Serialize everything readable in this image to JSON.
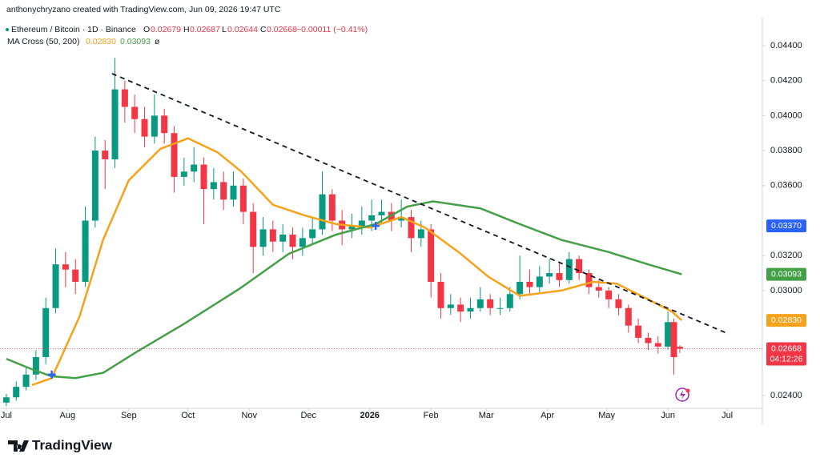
{
  "header": {
    "credit": "anthonychryzano created with TradingView.com, Jun 09, 2026 19:47 UTC",
    "symbol": "Ethereum / Bitcoin · 1D · Binance",
    "o_label": "O",
    "open": {
      "value": 0.02679,
      "label": "0.02679"
    },
    "h_label": "H",
    "high": {
      "value": 0.02687,
      "label": "0.02687"
    },
    "l_label": "L",
    "low": {
      "value": 0.02644,
      "label": "0.02644"
    },
    "c_label": "C",
    "close": {
      "value": 0.02668,
      "label": "0.02668"
    },
    "change": {
      "value": -0.00011,
      "label": "−0.00011 (−0.41%)"
    },
    "indicator": "MA Cross (50, 200)",
    "ma_fast": {
      "value": 0.0283,
      "label": "0.02830"
    },
    "ma_slow": {
      "value": 0.03093,
      "label": "0.03093"
    },
    "hidden_icon": "ø"
  },
  "chart_data": {
    "type": "candlestick",
    "xlim": [
      -3.2,
      382.8
    ],
    "ylim": [
      0.02327,
      0.0456
    ],
    "xticks": [
      {
        "value": 0,
        "label": "Jul"
      },
      {
        "value": 31,
        "label": "Aug"
      },
      {
        "value": 62,
        "label": "Sep"
      },
      {
        "value": 92,
        "label": "Oct"
      },
      {
        "value": 123,
        "label": "Nov"
      },
      {
        "value": 153,
        "label": "Dec"
      },
      {
        "value": 184,
        "label": "2026"
      },
      {
        "value": 215,
        "label": "Feb"
      },
      {
        "value": 243,
        "label": "Mar"
      },
      {
        "value": 274,
        "label": "Apr"
      },
      {
        "value": 304,
        "label": "May"
      },
      {
        "value": 335,
        "label": "Jun"
      },
      {
        "value": 365,
        "label": "Jul"
      }
    ],
    "yticks": [
      {
        "value": 0.044,
        "label": "0.04400"
      },
      {
        "value": 0.042,
        "label": "0.04200"
      },
      {
        "value": 0.04,
        "label": "0.04000"
      },
      {
        "value": 0.038,
        "label": "0.03800"
      },
      {
        "value": 0.036,
        "label": "0.03600"
      },
      {
        "value": 0.032,
        "label": "0.03200"
      },
      {
        "value": 0.03,
        "label": "0.03000"
      },
      {
        "value": 0.024,
        "label": "0.02400"
      }
    ],
    "up_color": "#089981",
    "down_color": "#f23645",
    "candles": {
      "x": [
        0,
        5,
        10,
        15,
        20,
        25,
        30,
        35,
        40,
        45,
        50,
        55,
        60,
        65,
        70,
        75,
        80,
        85,
        90,
        95,
        100,
        105,
        110,
        115,
        120,
        125,
        130,
        135,
        140,
        145,
        150,
        155,
        160,
        165,
        170,
        175,
        180,
        185,
        190,
        195,
        200,
        205,
        210,
        215,
        220,
        225,
        230,
        235,
        240,
        245,
        250,
        255,
        260,
        265,
        270,
        275,
        280,
        285,
        290,
        295,
        300,
        305,
        310,
        315,
        320,
        325,
        330,
        335,
        338,
        341
      ],
      "open": [
        0.0236,
        0.0239,
        0.0245,
        0.0252,
        0.0262,
        0.029,
        0.0315,
        0.0312,
        0.0305,
        0.034,
        0.038,
        0.0375,
        0.0415,
        0.0405,
        0.0398,
        0.0388,
        0.04,
        0.039,
        0.0365,
        0.0368,
        0.0372,
        0.0358,
        0.0362,
        0.0352,
        0.036,
        0.0345,
        0.0325,
        0.0335,
        0.0328,
        0.0332,
        0.0325,
        0.033,
        0.0335,
        0.0355,
        0.034,
        0.0335,
        0.0337,
        0.034,
        0.0343,
        0.0345,
        0.034,
        0.0342,
        0.033,
        0.0335,
        0.0305,
        0.029,
        0.0292,
        0.0288,
        0.029,
        0.0295,
        0.029,
        0.029,
        0.0298,
        0.0305,
        0.0302,
        0.0308,
        0.031,
        0.0306,
        0.0318,
        0.031,
        0.0302,
        0.03,
        0.0295,
        0.029,
        0.028,
        0.0273,
        0.027,
        0.0268,
        0.0282,
        0.02679
      ],
      "high": [
        0.0241,
        0.0248,
        0.0256,
        0.0266,
        0.0296,
        0.0324,
        0.0322,
        0.0318,
        0.0348,
        0.0388,
        0.0386,
        0.0433,
        0.042,
        0.0412,
        0.0405,
        0.0412,
        0.0404,
        0.0394,
        0.0376,
        0.0382,
        0.0376,
        0.037,
        0.0368,
        0.0368,
        0.0364,
        0.035,
        0.0342,
        0.034,
        0.0338,
        0.0336,
        0.0336,
        0.0342,
        0.0368,
        0.0358,
        0.0346,
        0.0344,
        0.0348,
        0.0352,
        0.0352,
        0.035,
        0.0352,
        0.0346,
        0.034,
        0.0338,
        0.031,
        0.0298,
        0.0296,
        0.0296,
        0.0302,
        0.0298,
        0.0296,
        0.0302,
        0.032,
        0.0312,
        0.0314,
        0.0318,
        0.0316,
        0.0322,
        0.032,
        0.0312,
        0.0306,
        0.0302,
        0.0298,
        0.0292,
        0.0284,
        0.0276,
        0.0274,
        0.0288,
        0.0284,
        0.02687
      ],
      "low": [
        0.0234,
        0.0237,
        0.0243,
        0.0249,
        0.0258,
        0.0287,
        0.0302,
        0.0298,
        0.0302,
        0.0336,
        0.0358,
        0.037,
        0.0396,
        0.039,
        0.0382,
        0.0384,
        0.0384,
        0.0356,
        0.036,
        0.0362,
        0.0338,
        0.0352,
        0.0346,
        0.0348,
        0.0338,
        0.031,
        0.032,
        0.0322,
        0.0322,
        0.0318,
        0.032,
        0.0326,
        0.0332,
        0.0334,
        0.0326,
        0.033,
        0.0332,
        0.0334,
        0.0338,
        0.0334,
        0.0336,
        0.0322,
        0.0325,
        0.0296,
        0.0284,
        0.0286,
        0.0282,
        0.0284,
        0.0288,
        0.0286,
        0.0286,
        0.0288,
        0.0295,
        0.0298,
        0.0298,
        0.0304,
        0.0302,
        0.0304,
        0.0306,
        0.0298,
        0.0296,
        0.029,
        0.0286,
        0.0276,
        0.027,
        0.0266,
        0.0264,
        0.0266,
        0.0252,
        0.02644
      ],
      "close": [
        0.0239,
        0.0245,
        0.0252,
        0.0262,
        0.029,
        0.0315,
        0.0312,
        0.0305,
        0.034,
        0.038,
        0.0375,
        0.0415,
        0.0405,
        0.0398,
        0.0388,
        0.04,
        0.039,
        0.0365,
        0.0368,
        0.0372,
        0.0358,
        0.0362,
        0.0352,
        0.036,
        0.0345,
        0.0325,
        0.0335,
        0.0328,
        0.0332,
        0.0325,
        0.033,
        0.0335,
        0.0355,
        0.034,
        0.0335,
        0.0337,
        0.034,
        0.0343,
        0.0345,
        0.034,
        0.0342,
        0.033,
        0.0335,
        0.0305,
        0.029,
        0.0292,
        0.0288,
        0.029,
        0.0295,
        0.029,
        0.029,
        0.0298,
        0.0305,
        0.0302,
        0.0308,
        0.031,
        0.0306,
        0.0318,
        0.031,
        0.0302,
        0.03,
        0.0295,
        0.029,
        0.028,
        0.0273,
        0.027,
        0.0268,
        0.0282,
        0.0262,
        0.02668
      ]
    },
    "series": [
      {
        "color": "#f7a21b",
        "x": [
          13,
          23,
          37,
          49,
          62,
          78,
          92,
          107,
          119,
          135,
          151,
          167,
          184,
          200,
          212,
          229,
          244,
          260,
          281,
          297,
          309,
          325,
          337,
          342
        ],
        "values": [
          0.0246,
          0.025,
          0.0285,
          0.0329,
          0.0363,
          0.0381,
          0.0387,
          0.0379,
          0.0368,
          0.0349,
          0.0343,
          0.0338,
          0.0336,
          0.0342,
          0.0336,
          0.0322,
          0.0308,
          0.0297,
          0.03,
          0.0305,
          0.0304,
          0.0295,
          0.0288,
          0.0283
        ],
        "value_label": {
          "value": 0.0283,
          "label": "0.02830"
        }
      },
      {
        "color": "#43a047",
        "x": [
          0,
          13,
          23,
          35,
          49,
          66,
          90,
          118,
          143,
          167,
          187,
          203,
          216,
          240,
          260,
          281,
          305,
          325,
          342
        ],
        "values": [
          0.0261,
          0.0255,
          0.0251,
          0.025,
          0.0253,
          0.0265,
          0.0281,
          0.0301,
          0.0321,
          0.0332,
          0.0338,
          0.0348,
          0.0351,
          0.0347,
          0.0338,
          0.0329,
          0.0322,
          0.0315,
          0.03093
        ],
        "value_label": {
          "value": 0.03093,
          "label": "0.03093"
        }
      }
    ],
    "crosses": {
      "x": [
        23,
        187
      ],
      "values": [
        0.0252,
        0.0337
      ],
      "color": "#2962ff",
      "value_label": {
        "value": 0.0337,
        "label": "0.03370"
      }
    },
    "trendline": {
      "x": [
        53.5,
        365.8
      ],
      "values": [
        0.0424,
        0.02752
      ]
    },
    "last_price": {
      "value": 0.02668,
      "label": "0.02668",
      "countdown": "04:12:26"
    }
  },
  "footer": {
    "brand": "TradingView"
  }
}
